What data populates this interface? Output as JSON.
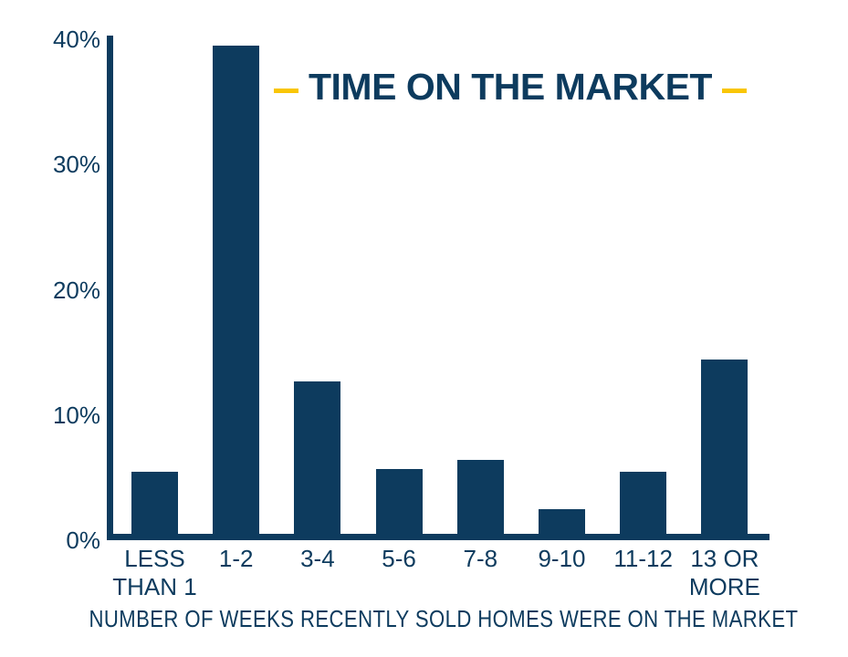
{
  "page": {
    "background": "#ffffff"
  },
  "chart_data": {
    "type": "bar",
    "title": "TIME ON THE MARKET",
    "xlabel": "NUMBER OF WEEKS RECENTLY SOLD HOMES WERE ON THE MARKET",
    "ylabel": "",
    "categories": [
      "LESS THAN 1",
      "1-2",
      "3-4",
      "5-6",
      "7-8",
      "9-10",
      "11-12",
      "13 OR MORE"
    ],
    "x_labels_lines": [
      [
        "LESS",
        "THAN 1"
      ],
      [
        "1-2"
      ],
      [
        "3-4"
      ],
      [
        "5-6"
      ],
      [
        "7-8"
      ],
      [
        "9-10"
      ],
      [
        "11-12"
      ],
      [
        "13 OR",
        "MORE"
      ]
    ],
    "values": [
      5.5,
      39.5,
      12.7,
      5.7,
      6.4,
      2.5,
      5.5,
      14.4
    ],
    "unit": "%",
    "y_ticks": [
      "0%",
      "10%",
      "20%",
      "30%",
      "40%"
    ],
    "y_tick_values": [
      0,
      10,
      20,
      30,
      40
    ],
    "ylim": [
      0,
      40
    ],
    "grid": false,
    "legend_position": "none",
    "title_dashes": "yellow horizontal dash accents flanking title",
    "colors": {
      "bar": "#0d3b5e",
      "text": "#0d3b5e",
      "accent_yellow": "#f9c606",
      "background": "#ffffff"
    }
  }
}
